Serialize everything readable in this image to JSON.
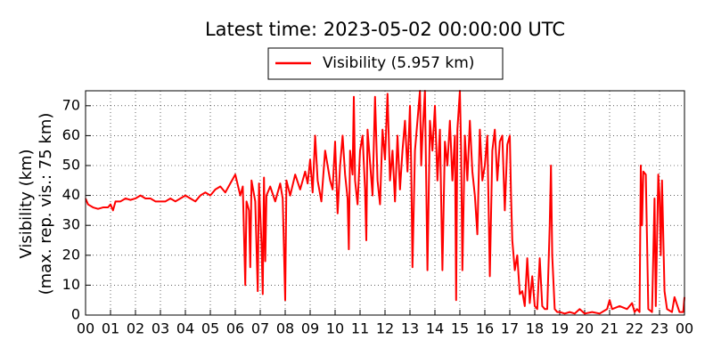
{
  "chart_data": {
    "type": "line",
    "title": "Latest time: 2023-05-02 00:00:00 UTC",
    "ylabel": [
      "Visibility (km)",
      "(max. rep. vis.: 75 km)"
    ],
    "xlim": [
      0,
      24
    ],
    "ylim": [
      0,
      75
    ],
    "xticks": [
      {
        "value": 0,
        "label": "00"
      },
      {
        "value": 1,
        "label": "01"
      },
      {
        "value": 2,
        "label": "02"
      },
      {
        "value": 3,
        "label": "03"
      },
      {
        "value": 4,
        "label": "04"
      },
      {
        "value": 5,
        "label": "05"
      },
      {
        "value": 6,
        "label": "06"
      },
      {
        "value": 7,
        "label": "07"
      },
      {
        "value": 8,
        "label": "08"
      },
      {
        "value": 9,
        "label": "09"
      },
      {
        "value": 10,
        "label": "10"
      },
      {
        "value": 11,
        "label": "11"
      },
      {
        "value": 12,
        "label": "12"
      },
      {
        "value": 13,
        "label": "13"
      },
      {
        "value": 14,
        "label": "14"
      },
      {
        "value": 15,
        "label": "15"
      },
      {
        "value": 16,
        "label": "16"
      },
      {
        "value": 17,
        "label": "17"
      },
      {
        "value": 18,
        "label": "18"
      },
      {
        "value": 19,
        "label": "19"
      },
      {
        "value": 20,
        "label": "20"
      },
      {
        "value": 21,
        "label": "21"
      },
      {
        "value": 22,
        "label": "22"
      },
      {
        "value": 23,
        "label": "23"
      },
      {
        "value": 24,
        "label": "00"
      }
    ],
    "yticks": [
      0,
      10,
      20,
      30,
      40,
      50,
      60,
      70
    ],
    "grid": true,
    "legend": "top",
    "series": [
      {
        "name": "Visibility (5.957 km)",
        "color": "#ff0000",
        "x": [
          0,
          0.1,
          0.3,
          0.5,
          0.7,
          0.9,
          1.0,
          1.1,
          1.2,
          1.4,
          1.6,
          1.8,
          2.0,
          2.2,
          2.4,
          2.6,
          2.8,
          3.0,
          3.2,
          3.4,
          3.6,
          3.8,
          4.0,
          4.2,
          4.4,
          4.6,
          4.8,
          5.0,
          5.2,
          5.4,
          5.6,
          5.8,
          6.0,
          6.2,
          6.3,
          6.35,
          6.4,
          6.45,
          6.55,
          6.6,
          6.65,
          6.8,
          6.9,
          6.95,
          7.05,
          7.1,
          7.15,
          7.2,
          7.25,
          7.4,
          7.6,
          7.8,
          7.9,
          8.0,
          8.05,
          8.2,
          8.4,
          8.6,
          8.8,
          8.9,
          9.0,
          9.1,
          9.2,
          9.3,
          9.45,
          9.6,
          9.8,
          9.9,
          10.0,
          10.1,
          10.2,
          10.3,
          10.4,
          10.5,
          10.55,
          10.6,
          10.7,
          10.75,
          10.8,
          10.9,
          11.0,
          11.1,
          11.2,
          11.25,
          11.3,
          11.5,
          11.6,
          11.7,
          11.8,
          11.9,
          12.0,
          12.1,
          12.2,
          12.3,
          12.4,
          12.5,
          12.6,
          12.7,
          12.8,
          12.9,
          13.0,
          13.05,
          13.1,
          13.2,
          13.3,
          13.4,
          13.45,
          13.5,
          13.6,
          13.65,
          13.7,
          13.8,
          13.9,
          14.0,
          14.1,
          14.2,
          14.3,
          14.4,
          14.5,
          14.6,
          14.7,
          14.8,
          14.85,
          14.9,
          15.0,
          15.05,
          15.1,
          15.2,
          15.3,
          15.4,
          15.5,
          15.6,
          15.7,
          15.8,
          15.9,
          16.0,
          16.1,
          16.2,
          16.3,
          16.4,
          16.5,
          16.6,
          16.7,
          16.8,
          16.9,
          17.0,
          17.05,
          17.1,
          17.2,
          17.3,
          17.4,
          17.5,
          17.6,
          17.7,
          17.8,
          17.9,
          18.0,
          18.1,
          18.2,
          18.3,
          18.4,
          18.5,
          18.6,
          18.65,
          18.7,
          18.8,
          18.9,
          19.0,
          19.2,
          19.4,
          19.6,
          19.8,
          20.0,
          20.3,
          20.6,
          20.9,
          21.0,
          21.1,
          21.4,
          21.7,
          21.9,
          22.0,
          22.1,
          22.2,
          22.25,
          22.3,
          22.35,
          22.45,
          22.5,
          22.55,
          22.7,
          22.8,
          22.85,
          22.95,
          23.0,
          23.05,
          23.1,
          23.2,
          23.3,
          23.5,
          23.6,
          23.8,
          23.95,
          24.0
        ],
        "values": [
          39,
          37,
          36,
          35.5,
          36,
          36,
          37,
          35,
          38,
          38,
          39,
          38.5,
          39,
          40,
          39,
          39,
          38,
          38,
          38,
          39,
          38,
          39,
          40,
          39,
          38,
          40,
          41,
          40,
          42,
          43,
          41,
          44,
          47,
          40,
          43,
          27,
          10,
          38,
          35,
          16,
          45,
          38,
          8,
          44,
          24,
          7,
          46,
          18,
          40,
          43,
          38,
          44,
          39,
          5,
          45,
          40,
          47,
          42,
          48,
          44,
          52,
          41,
          60,
          45,
          38,
          55,
          45,
          42,
          58,
          34,
          50,
          60,
          47,
          39,
          22,
          55,
          47,
          73,
          45,
          37,
          55,
          60,
          42,
          25,
          62,
          40,
          73,
          45,
          37,
          62,
          52,
          74,
          45,
          55,
          38,
          60,
          42,
          55,
          65,
          48,
          70,
          50,
          16,
          55,
          65,
          75,
          50,
          60,
          75,
          45,
          15,
          65,
          55,
          70,
          45,
          62,
          15,
          58,
          50,
          65,
          45,
          60,
          5,
          62,
          75,
          55,
          15,
          60,
          45,
          65,
          48,
          40,
          27,
          62,
          45,
          50,
          60,
          13,
          55,
          62,
          45,
          58,
          60,
          35,
          57,
          60,
          40,
          25,
          15,
          20,
          7,
          8,
          3,
          19,
          4,
          13,
          3,
          2,
          19,
          3,
          2,
          2,
          30,
          50,
          20,
          2,
          1,
          1,
          0.5,
          1,
          0.5,
          2,
          0.5,
          1,
          0.5,
          2,
          5,
          2,
          3,
          2,
          4,
          1,
          2,
          1,
          50,
          30,
          48,
          47,
          25,
          2,
          1,
          39,
          3,
          47,
          40,
          20,
          45,
          8,
          2,
          1,
          6,
          1,
          1,
          6
        ]
      }
    ]
  }
}
